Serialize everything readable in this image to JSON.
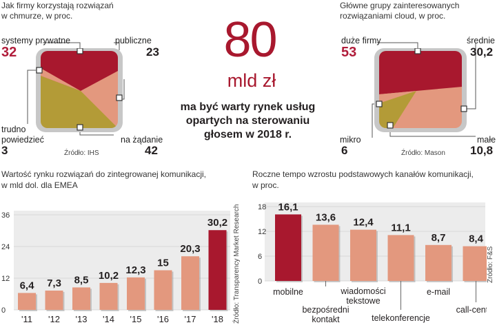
{
  "colors": {
    "crimson": "#a8182e",
    "salmon": "#e3987e",
    "olive": "#b39b37",
    "frame": "#bfbfbf",
    "plot_bg": "#ececec",
    "grid": "#d9d9d9"
  },
  "headline": {
    "number": "80",
    "unit": "mld zł",
    "text": "ma być warty rynek usług opartych na sterowaniu głosem w 2018 r."
  },
  "chart_data": [
    {
      "type": "pie",
      "title": "Jak firmy korzystają rozwiązań w chmurze, w proc.",
      "slices": [
        {
          "label": "systemy prywatne",
          "value": 32,
          "color": "#a8182e"
        },
        {
          "label": "publiczne",
          "value": 23,
          "color": "#e3987e"
        },
        {
          "label": "na żądanie",
          "value": 42,
          "color": "#b39b37"
        },
        {
          "label": "trudno powiedzieć",
          "value": 3,
          "color": "#e3987e"
        }
      ],
      "source": "Źródło: IHS"
    },
    {
      "type": "pie",
      "title": "Główne grupy zainteresowanych rozwiązaniami cloud, w proc.",
      "slices": [
        {
          "label": "duże firmy",
          "value": 53,
          "color": "#a8182e"
        },
        {
          "label": "średnie",
          "value": 30.2,
          "color": "#e3987e"
        },
        {
          "label": "małe",
          "value": 10.8,
          "color": "#b39b37"
        },
        {
          "label": "mikro",
          "value": 6,
          "color": "#e3987e"
        }
      ],
      "source": "Źródło: Mason"
    },
    {
      "type": "bar",
      "title": "Wartość rynku rozwiązań do zintegrowanej komunikacji, w mld dol. dla EMEA",
      "categories": [
        "'11",
        "'12",
        "'13",
        "'14",
        "'15",
        "'16",
        "'17",
        "'18"
      ],
      "values": [
        6.4,
        7.3,
        8.5,
        10.2,
        12.3,
        15,
        20.3,
        30.2
      ],
      "value_labels": [
        "6,4",
        "7,3",
        "8,5",
        "10,2",
        "12,3",
        "15",
        "20,3",
        "30,2"
      ],
      "yticks": [
        "0",
        "12",
        "24",
        "36"
      ],
      "ylim": [
        0,
        36
      ],
      "highlight_index": 7,
      "source": "Źródło: Transparency Market Research"
    },
    {
      "type": "bar",
      "title": "Roczne tempo wzrostu podstawowych kanałów komunikacji, w proc.",
      "categories": [
        "mobilne",
        "bezpośredni kontakt",
        "wiadomości tekstowe",
        "telekonferencje",
        "e-mail",
        "call-center"
      ],
      "values": [
        16.1,
        13.6,
        12.4,
        11.1,
        8.7,
        8.4
      ],
      "value_labels": [
        "16,1",
        "13,6",
        "12,4",
        "11,1",
        "8,7",
        "8,4"
      ],
      "yticks": [
        "0",
        "6",
        "12",
        "18"
      ],
      "ylim": [
        0,
        18
      ],
      "highlight_index": 0,
      "source": "Źródło: F&S"
    }
  ],
  "labels": {
    "p1_title_l1": "Jak firmy korzystają rozwiązań",
    "p1_title_l2": "w chmurze, w proc.",
    "p1_private": "systemy prywatne",
    "p1_private_val": "32",
    "p1_public": "publiczne",
    "p1_public_val": "23",
    "p1_hard_l1": "trudno",
    "p1_hard_l2": "powiedzieć",
    "p1_hard_val": "3",
    "p1_demand": "na żądanie",
    "p1_demand_val": "42",
    "p2_title_l1": "Główne grupy zainteresowanych",
    "p2_title_l2": "rozwiązaniami cloud, w proc.",
    "p2_big": "duże firmy",
    "p2_big_val": "53",
    "p2_mid": "średnie",
    "p2_mid_val": "30,2",
    "p2_micro": "mikro",
    "p2_micro_val": "6",
    "p2_small": "małe",
    "p2_small_val": "10,8",
    "b1_title_l1": "Wartość rynku rozwiązań do zintegrowanej komunikacji,",
    "b1_title_l2": "w mld dol. dla EMEA",
    "b2_title_l1": "Roczne tempo wzrostu podstawowych kanałów komunikacji,",
    "b2_title_l2": "w proc."
  }
}
